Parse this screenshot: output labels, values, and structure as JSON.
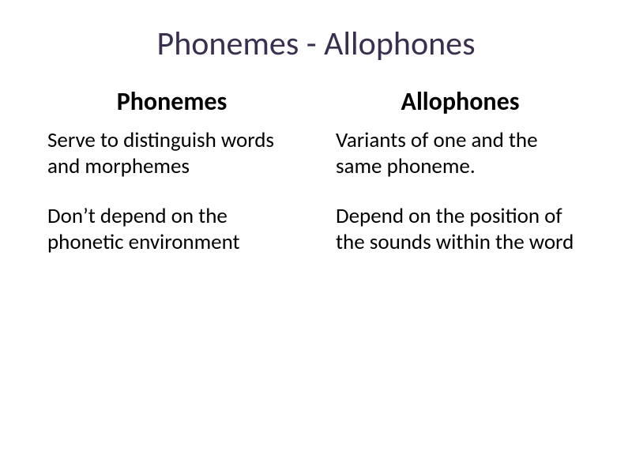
{
  "title": {
    "text": "Phonemes - Allophones",
    "color": "#3b2f4f",
    "fontsize": 42
  },
  "columns": {
    "left": {
      "heading": "Phonemes",
      "para1": "Serve to distinguish words and morphemes",
      "para2": "Don’t  depend on the phonetic environment"
    },
    "right": {
      "heading": "Allophones",
      "para1": "Variants of one and the same phoneme.",
      "para2": "Depend on the position of the sounds within the word"
    }
  },
  "styles": {
    "background": "#ffffff",
    "body_color": "#000000",
    "heading_fontsize": 32,
    "para_fontsize": 27
  }
}
